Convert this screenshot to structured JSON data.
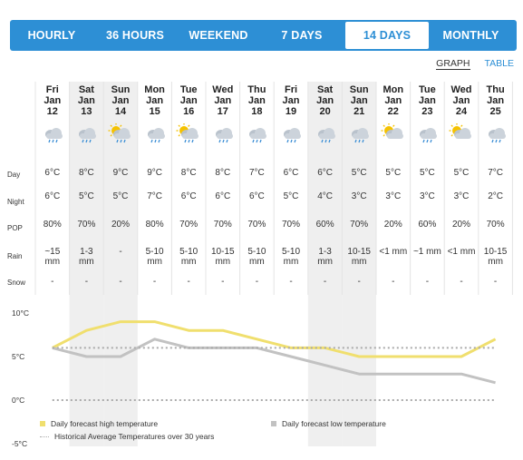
{
  "tabs": [
    {
      "label": "HOURLY",
      "active": false
    },
    {
      "label": "36 HOURS",
      "active": false
    },
    {
      "label": "WEEKEND",
      "active": false
    },
    {
      "label": "7 DAYS",
      "active": false
    },
    {
      "label": "14 DAYS",
      "active": true
    },
    {
      "label": "MONTHLY",
      "active": false
    }
  ],
  "view_toggle": {
    "graph": "GRAPH",
    "table": "TABLE",
    "active": "graph"
  },
  "row_labels": {
    "day": "Day",
    "night": "Night",
    "pop": "POP",
    "rain": "Rain",
    "snow": "Snow"
  },
  "days": [
    {
      "name": "Fri",
      "mon": "Jan",
      "num": "12",
      "icon": "rain-cloud-icon",
      "day": "6°C",
      "night": "6°C",
      "pop": "80%",
      "rain": [
        "~15",
        "mm"
      ],
      "snow": "-",
      "weekend": false
    },
    {
      "name": "Sat",
      "mon": "Jan",
      "num": "13",
      "icon": "rain-cloud-icon",
      "day": "8°C",
      "night": "5°C",
      "pop": "70%",
      "rain": [
        "1-3",
        "mm"
      ],
      "snow": "-",
      "weekend": true
    },
    {
      "name": "Sun",
      "mon": "Jan",
      "num": "14",
      "icon": "sun-cloud-rain-icon",
      "day": "9°C",
      "night": "5°C",
      "pop": "20%",
      "rain": [
        "-",
        ""
      ],
      "snow": "-",
      "weekend": true
    },
    {
      "name": "Mon",
      "mon": "Jan",
      "num": "15",
      "icon": "rain-cloud-icon",
      "day": "9°C",
      "night": "7°C",
      "pop": "80%",
      "rain": [
        "5-10",
        "mm"
      ],
      "snow": "-",
      "weekend": false
    },
    {
      "name": "Tue",
      "mon": "Jan",
      "num": "16",
      "icon": "sun-cloud-rain-icon",
      "day": "8°C",
      "night": "6°C",
      "pop": "70%",
      "rain": [
        "5-10",
        "mm"
      ],
      "snow": "-",
      "weekend": false
    },
    {
      "name": "Wed",
      "mon": "Jan",
      "num": "17",
      "icon": "rain-cloud-icon",
      "day": "8°C",
      "night": "6°C",
      "pop": "70%",
      "rain": [
        "10-15",
        "mm"
      ],
      "snow": "-",
      "weekend": false
    },
    {
      "name": "Thu",
      "mon": "Jan",
      "num": "18",
      "icon": "rain-cloud-icon",
      "day": "7°C",
      "night": "6°C",
      "pop": "70%",
      "rain": [
        "5-10",
        "mm"
      ],
      "snow": "-",
      "weekend": false
    },
    {
      "name": "Fri",
      "mon": "Jan",
      "num": "19",
      "icon": "rain-cloud-icon",
      "day": "6°C",
      "night": "5°C",
      "pop": "70%",
      "rain": [
        "5-10",
        "mm"
      ],
      "snow": "-",
      "weekend": false
    },
    {
      "name": "Sat",
      "mon": "Jan",
      "num": "20",
      "icon": "rain-cloud-icon",
      "day": "6°C",
      "night": "4°C",
      "pop": "60%",
      "rain": [
        "1-3",
        "mm"
      ],
      "snow": "-",
      "weekend": true
    },
    {
      "name": "Sun",
      "mon": "Jan",
      "num": "21",
      "icon": "rain-cloud-icon",
      "day": "5°C",
      "night": "3°C",
      "pop": "70%",
      "rain": [
        "10-15",
        "mm"
      ],
      "snow": "-",
      "weekend": true
    },
    {
      "name": "Mon",
      "mon": "Jan",
      "num": "22",
      "icon": "sun-cloud-icon",
      "day": "5°C",
      "night": "3°C",
      "pop": "20%",
      "rain": [
        "<1 mm",
        ""
      ],
      "snow": "-",
      "weekend": false
    },
    {
      "name": "Tue",
      "mon": "Jan",
      "num": "23",
      "icon": "rain-cloud-icon",
      "day": "5°C",
      "night": "3°C",
      "pop": "60%",
      "rain": [
        "~1 mm",
        ""
      ],
      "snow": "-",
      "weekend": false
    },
    {
      "name": "Wed",
      "mon": "Jan",
      "num": "24",
      "icon": "sun-cloud-icon",
      "day": "5°C",
      "night": "3°C",
      "pop": "20%",
      "rain": [
        "<1 mm",
        ""
      ],
      "snow": "-",
      "weekend": false
    },
    {
      "name": "Thu",
      "mon": "Jan",
      "num": "25",
      "icon": "rain-cloud-icon",
      "day": "7°C",
      "night": "2°C",
      "pop": "70%",
      "rain": [
        "10-15",
        "mm"
      ],
      "snow": "-",
      "weekend": false
    }
  ],
  "chart_data": {
    "type": "line",
    "y_ticks": [
      "10°C",
      "5°C",
      "0°C",
      "-5°C"
    ],
    "ylim": [
      -5,
      10
    ],
    "series": [
      {
        "name": "Daily forecast high temperature",
        "color": "#f0df6e",
        "values": [
          6,
          8,
          9,
          9,
          8,
          8,
          7,
          6,
          6,
          5,
          5,
          5,
          5,
          7
        ]
      },
      {
        "name": "Daily forecast low temperature",
        "color": "#c2c2c2",
        "values": [
          6,
          5,
          5,
          7,
          6,
          6,
          6,
          5,
          4,
          3,
          3,
          3,
          3,
          2
        ]
      },
      {
        "name": "Historical Average Temperatures over 30 years",
        "color": "#aaaaaa",
        "style": "dotted",
        "values": [
          6,
          6,
          6,
          6,
          6,
          6,
          6,
          6,
          6,
          6,
          6,
          6,
          6,
          6
        ]
      },
      {
        "name": "",
        "color": "#aaaaaa",
        "style": "dotted",
        "values": [
          0,
          0,
          0,
          0,
          0,
          0,
          0,
          0,
          0,
          0,
          0,
          0,
          0,
          0
        ]
      }
    ]
  },
  "legend": {
    "high": "Daily forecast high temperature",
    "low": "Daily forecast low temperature",
    "hist": "Historical Average Temperatures over 30 years"
  }
}
